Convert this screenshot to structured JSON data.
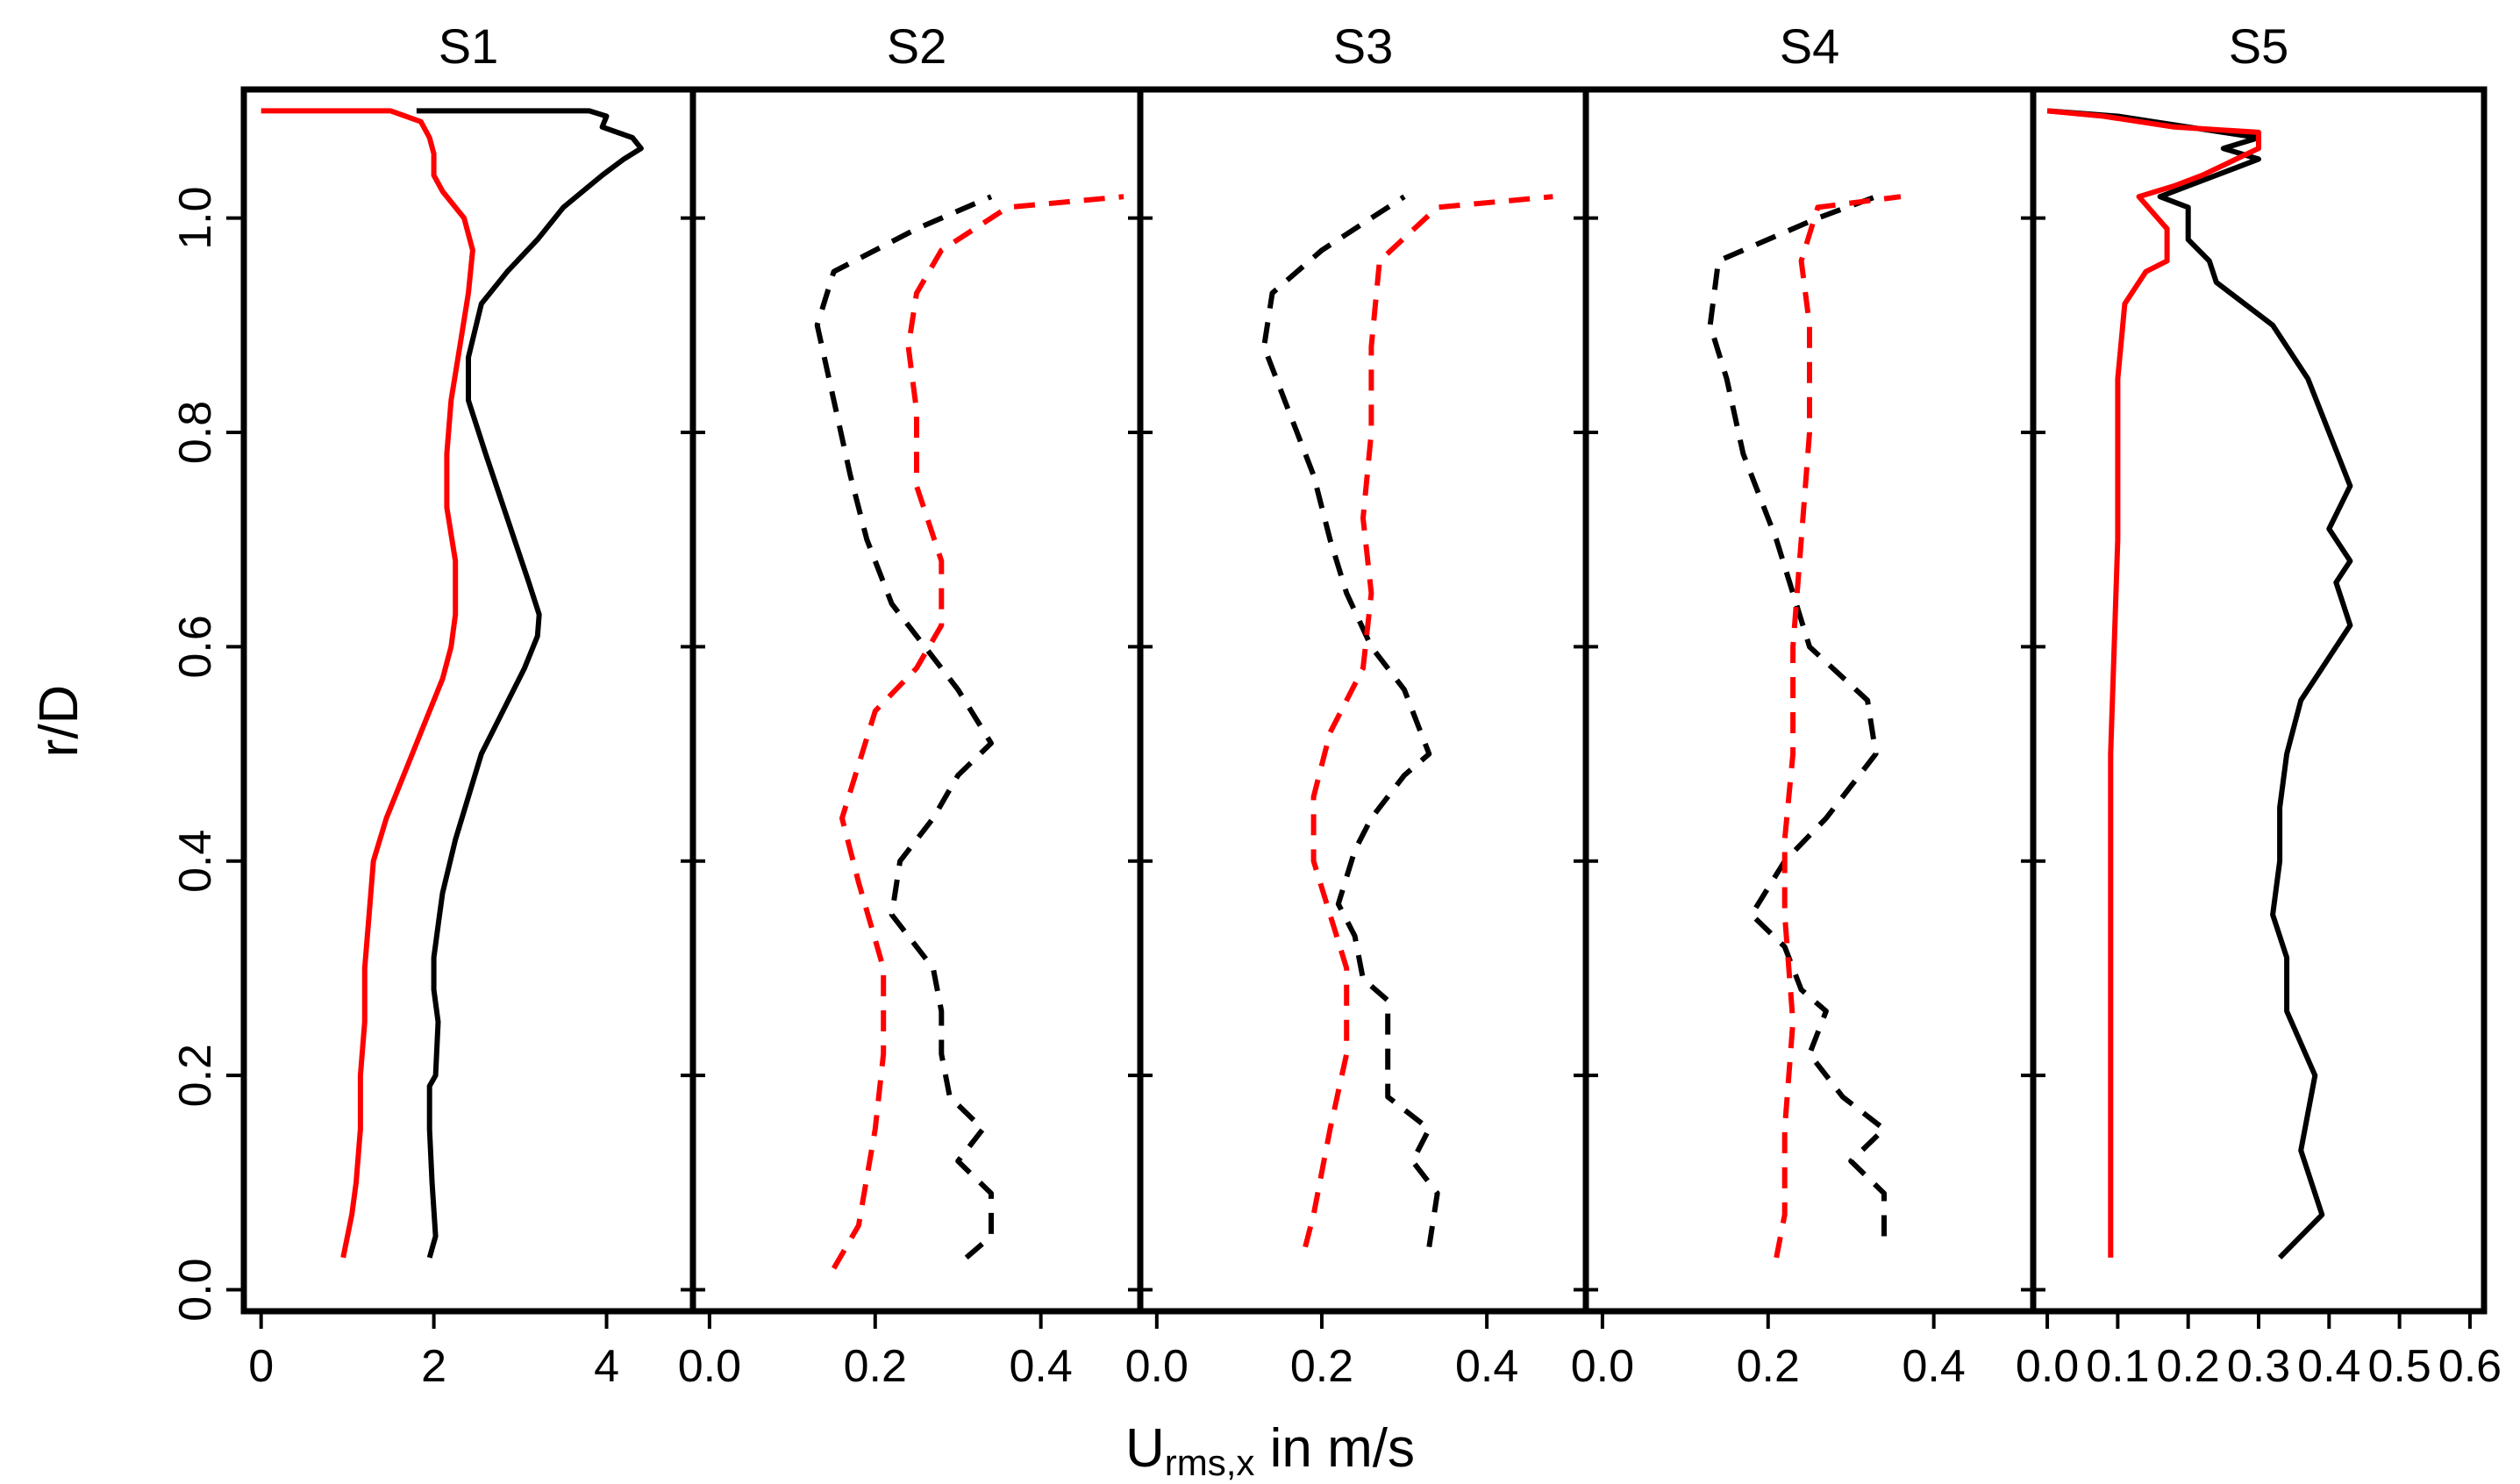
{
  "xlabel_main": "U",
  "xlabel_sub": "rms,x",
  "xlabel_rest": " in m/s",
  "colors": {
    "black": "#000000",
    "red": "#ff0000"
  },
  "chart_data": [
    {
      "type": "line",
      "title": "S1",
      "ylabel": "r/D",
      "xlim": [
        -0.2,
        5.0
      ],
      "ylim": [
        -0.02,
        1.12
      ],
      "xticks": [
        0,
        2,
        4
      ],
      "xtick_labels": [
        "0",
        "2",
        "4"
      ],
      "yticks": [
        0.0,
        0.2,
        0.4,
        0.6,
        0.8,
        1.0
      ],
      "ytick_labels": [
        "0.0",
        "0.2",
        "0.4",
        "0.6",
        "0.8",
        "1.0"
      ],
      "series": [
        {
          "color": "black",
          "dash": "solid",
          "points": [
            [
              1.95,
              0.03
            ],
            [
              2.02,
              0.05
            ],
            [
              1.98,
              0.1
            ],
            [
              1.95,
              0.15
            ],
            [
              1.95,
              0.19
            ],
            [
              2.02,
              0.2
            ],
            [
              2.05,
              0.25
            ],
            [
              2.0,
              0.28
            ],
            [
              2.0,
              0.31
            ],
            [
              2.05,
              0.34
            ],
            [
              2.1,
              0.37
            ],
            [
              2.25,
              0.42
            ],
            [
              2.4,
              0.46
            ],
            [
              2.55,
              0.5
            ],
            [
              2.8,
              0.54
            ],
            [
              3.05,
              0.58
            ],
            [
              3.2,
              0.61
            ],
            [
              3.22,
              0.63
            ],
            [
              3.1,
              0.66
            ],
            [
              2.85,
              0.72
            ],
            [
              2.6,
              0.78
            ],
            [
              2.4,
              0.83
            ],
            [
              2.4,
              0.87
            ],
            [
              2.55,
              0.92
            ],
            [
              2.85,
              0.95
            ],
            [
              3.2,
              0.98
            ],
            [
              3.5,
              1.01
            ],
            [
              3.65,
              1.02
            ],
            [
              3.95,
              1.04
            ],
            [
              4.2,
              1.055
            ],
            [
              4.4,
              1.065
            ],
            [
              4.3,
              1.075
            ],
            [
              3.95,
              1.085
            ],
            [
              4.0,
              1.095
            ],
            [
              3.8,
              1.1
            ],
            [
              1.8,
              1.1
            ]
          ]
        },
        {
          "color": "red",
          "dash": "solid",
          "points": [
            [
              0.95,
              0.03
            ],
            [
              1.05,
              0.07
            ],
            [
              1.1,
              0.1
            ],
            [
              1.15,
              0.15
            ],
            [
              1.15,
              0.2
            ],
            [
              1.2,
              0.25
            ],
            [
              1.2,
              0.3
            ],
            [
              1.25,
              0.35
            ],
            [
              1.3,
              0.4
            ],
            [
              1.45,
              0.44
            ],
            [
              1.65,
              0.48
            ],
            [
              1.9,
              0.53
            ],
            [
              2.1,
              0.57
            ],
            [
              2.2,
              0.6
            ],
            [
              2.25,
              0.63
            ],
            [
              2.25,
              0.68
            ],
            [
              2.15,
              0.73
            ],
            [
              2.15,
              0.78
            ],
            [
              2.2,
              0.83
            ],
            [
              2.3,
              0.88
            ],
            [
              2.4,
              0.93
            ],
            [
              2.45,
              0.97
            ],
            [
              2.35,
              1.0
            ],
            [
              2.1,
              1.025
            ],
            [
              2.0,
              1.04
            ],
            [
              2.0,
              1.06
            ],
            [
              1.95,
              1.075
            ],
            [
              1.85,
              1.09
            ],
            [
              1.5,
              1.1
            ],
            [
              0.0,
              1.1
            ]
          ]
        }
      ]
    },
    {
      "type": "line",
      "title": "S2",
      "xlim": [
        -0.02,
        0.52
      ],
      "ylim": [
        -0.02,
        1.12
      ],
      "xticks": [
        0.0,
        0.2,
        0.4
      ],
      "xtick_labels": [
        "0.0",
        "0.2",
        "0.4"
      ],
      "series": [
        {
          "color": "black",
          "dash": "dashed",
          "points": [
            [
              0.31,
              0.03
            ],
            [
              0.34,
              0.05
            ],
            [
              0.34,
              0.09
            ],
            [
              0.3,
              0.12
            ],
            [
              0.33,
              0.15
            ],
            [
              0.29,
              0.18
            ],
            [
              0.28,
              0.22
            ],
            [
              0.28,
              0.26
            ],
            [
              0.27,
              0.3
            ],
            [
              0.22,
              0.35
            ],
            [
              0.23,
              0.4
            ],
            [
              0.27,
              0.44
            ],
            [
              0.3,
              0.48
            ],
            [
              0.34,
              0.51
            ],
            [
              0.3,
              0.56
            ],
            [
              0.22,
              0.64
            ],
            [
              0.19,
              0.7
            ],
            [
              0.17,
              0.76
            ],
            [
              0.15,
              0.83
            ],
            [
              0.13,
              0.9
            ],
            [
              0.15,
              0.95
            ],
            [
              0.25,
              0.99
            ],
            [
              0.34,
              1.02
            ]
          ]
        },
        {
          "color": "red",
          "dash": "dashed",
          "points": [
            [
              0.15,
              0.02
            ],
            [
              0.18,
              0.06
            ],
            [
              0.2,
              0.15
            ],
            [
              0.21,
              0.22
            ],
            [
              0.21,
              0.3
            ],
            [
              0.18,
              0.38
            ],
            [
              0.16,
              0.44
            ],
            [
              0.2,
              0.54
            ],
            [
              0.25,
              0.58
            ],
            [
              0.28,
              0.62
            ],
            [
              0.28,
              0.68
            ],
            [
              0.25,
              0.75
            ],
            [
              0.25,
              0.82
            ],
            [
              0.24,
              0.88
            ],
            [
              0.25,
              0.93
            ],
            [
              0.28,
              0.97
            ],
            [
              0.36,
              1.01
            ],
            [
              0.5,
              1.02
            ]
          ]
        }
      ]
    },
    {
      "type": "line",
      "title": "S3",
      "xlim": [
        -0.02,
        0.52
      ],
      "ylim": [
        -0.02,
        1.12
      ],
      "xticks": [
        0.0,
        0.2,
        0.4
      ],
      "xtick_labels": [
        "0.0",
        "0.2",
        "0.4"
      ],
      "series": [
        {
          "color": "black",
          "dash": "dashed",
          "points": [
            [
              0.33,
              0.04
            ],
            [
              0.34,
              0.09
            ],
            [
              0.31,
              0.12
            ],
            [
              0.33,
              0.15
            ],
            [
              0.28,
              0.18
            ],
            [
              0.28,
              0.22
            ],
            [
              0.28,
              0.27
            ],
            [
              0.25,
              0.29
            ],
            [
              0.24,
              0.33
            ],
            [
              0.22,
              0.36
            ],
            [
              0.24,
              0.41
            ],
            [
              0.26,
              0.44
            ],
            [
              0.3,
              0.48
            ],
            [
              0.33,
              0.5
            ],
            [
              0.3,
              0.56
            ],
            [
              0.26,
              0.6
            ],
            [
              0.23,
              0.65
            ],
            [
              0.21,
              0.7
            ],
            [
              0.19,
              0.76
            ],
            [
              0.16,
              0.82
            ],
            [
              0.13,
              0.88
            ],
            [
              0.14,
              0.93
            ],
            [
              0.2,
              0.97
            ],
            [
              0.3,
              1.02
            ]
          ]
        },
        {
          "color": "red",
          "dash": "dashed",
          "points": [
            [
              0.18,
              0.04
            ],
            [
              0.19,
              0.07
            ],
            [
              0.21,
              0.15
            ],
            [
              0.23,
              0.22
            ],
            [
              0.23,
              0.3
            ],
            [
              0.21,
              0.35
            ],
            [
              0.19,
              0.4
            ],
            [
              0.19,
              0.46
            ],
            [
              0.21,
              0.52
            ],
            [
              0.25,
              0.58
            ],
            [
              0.26,
              0.65
            ],
            [
              0.25,
              0.72
            ],
            [
              0.26,
              0.8
            ],
            [
              0.26,
              0.88
            ],
            [
              0.27,
              0.96
            ],
            [
              0.34,
              1.01
            ],
            [
              0.48,
              1.02
            ]
          ]
        }
      ]
    },
    {
      "type": "line",
      "title": "S4",
      "xlim": [
        -0.02,
        0.52
      ],
      "ylim": [
        -0.02,
        1.12
      ],
      "xticks": [
        0.0,
        0.2,
        0.4
      ],
      "xtick_labels": [
        "0.0",
        "0.2",
        "0.4"
      ],
      "series": [
        {
          "color": "black",
          "dash": "dashed",
          "points": [
            [
              0.34,
              0.05
            ],
            [
              0.34,
              0.09
            ],
            [
              0.3,
              0.12
            ],
            [
              0.34,
              0.15
            ],
            [
              0.29,
              0.18
            ],
            [
              0.25,
              0.22
            ],
            [
              0.27,
              0.26
            ],
            [
              0.24,
              0.28
            ],
            [
              0.22,
              0.32
            ],
            [
              0.18,
              0.35
            ],
            [
              0.22,
              0.4
            ],
            [
              0.27,
              0.44
            ],
            [
              0.33,
              0.5
            ],
            [
              0.32,
              0.55
            ],
            [
              0.25,
              0.6
            ],
            [
              0.23,
              0.65
            ],
            [
              0.21,
              0.7
            ],
            [
              0.19,
              0.74
            ],
            [
              0.17,
              0.78
            ],
            [
              0.15,
              0.85
            ],
            [
              0.13,
              0.9
            ],
            [
              0.14,
              0.96
            ],
            [
              0.26,
              1.0
            ],
            [
              0.33,
              1.02
            ]
          ]
        },
        {
          "color": "red",
          "dash": "dashed",
          "points": [
            [
              0.21,
              0.03
            ],
            [
              0.22,
              0.07
            ],
            [
              0.22,
              0.15
            ],
            [
              0.23,
              0.25
            ],
            [
              0.22,
              0.35
            ],
            [
              0.22,
              0.42
            ],
            [
              0.23,
              0.5
            ],
            [
              0.23,
              0.6
            ],
            [
              0.24,
              0.7
            ],
            [
              0.25,
              0.8
            ],
            [
              0.25,
              0.9
            ],
            [
              0.24,
              0.96
            ],
            [
              0.26,
              1.01
            ],
            [
              0.36,
              1.02
            ]
          ]
        }
      ]
    },
    {
      "type": "line",
      "title": "S5",
      "xlim": [
        -0.02,
        0.62
      ],
      "ylim": [
        -0.02,
        1.12
      ],
      "xticks": [
        0.0,
        0.1,
        0.2,
        0.3,
        0.4,
        0.5,
        0.6
      ],
      "xtick_labels": [
        "0.0",
        "0.1",
        "0.2",
        "0.3",
        "0.4",
        "0.5",
        "0.6"
      ],
      "series": [
        {
          "color": "black",
          "dash": "solid",
          "points": [
            [
              0.33,
              0.03
            ],
            [
              0.39,
              0.07
            ],
            [
              0.36,
              0.13
            ],
            [
              0.38,
              0.2
            ],
            [
              0.34,
              0.26
            ],
            [
              0.34,
              0.31
            ],
            [
              0.32,
              0.35
            ],
            [
              0.33,
              0.4
            ],
            [
              0.33,
              0.45
            ],
            [
              0.34,
              0.5
            ],
            [
              0.36,
              0.55
            ],
            [
              0.43,
              0.62
            ],
            [
              0.41,
              0.66
            ],
            [
              0.43,
              0.68
            ],
            [
              0.4,
              0.71
            ],
            [
              0.43,
              0.75
            ],
            [
              0.4,
              0.8
            ],
            [
              0.37,
              0.85
            ],
            [
              0.32,
              0.9
            ],
            [
              0.24,
              0.94
            ],
            [
              0.23,
              0.96
            ],
            [
              0.2,
              0.98
            ],
            [
              0.2,
              1.01
            ],
            [
              0.16,
              1.02
            ],
            [
              0.2,
              1.03
            ],
            [
              0.3,
              1.055
            ],
            [
              0.25,
              1.065
            ],
            [
              0.3,
              1.075
            ],
            [
              0.2,
              1.085
            ],
            [
              0.1,
              1.095
            ],
            [
              0.0,
              1.1
            ]
          ]
        },
        {
          "color": "red",
          "dash": "solid",
          "points": [
            [
              0.09,
              0.03
            ],
            [
              0.09,
              0.2
            ],
            [
              0.09,
              0.5
            ],
            [
              0.1,
              0.7
            ],
            [
              0.1,
              0.85
            ],
            [
              0.11,
              0.92
            ],
            [
              0.14,
              0.95
            ],
            [
              0.17,
              0.96
            ],
            [
              0.17,
              0.99
            ],
            [
              0.13,
              1.02
            ],
            [
              0.18,
              1.03
            ],
            [
              0.22,
              1.04
            ],
            [
              0.3,
              1.065
            ],
            [
              0.3,
              1.08
            ],
            [
              0.18,
              1.085
            ],
            [
              0.08,
              1.095
            ],
            [
              0.0,
              1.1
            ]
          ]
        }
      ]
    }
  ]
}
